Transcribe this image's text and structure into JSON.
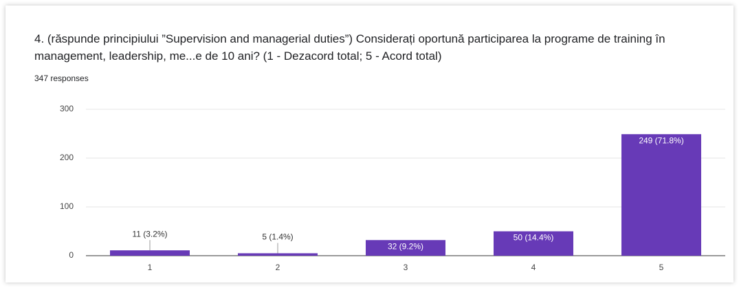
{
  "chart_data": {
    "type": "bar",
    "title": "4. (răspunde principiului ”Supervision and managerial duties”)  Considerați oportună participarea la programe de training în management, leadership,  me...e de 10 ani? (1 - Dezacord total; 5  - Acord total)",
    "subtitle": "347 responses",
    "categories": [
      "1",
      "2",
      "3",
      "4",
      "5"
    ],
    "values": [
      11,
      5,
      32,
      50,
      249
    ],
    "value_labels": [
      "11 (3.2%)",
      "5 (1.4%)",
      "32 (9.2%)",
      "50 (14.4%)",
      "249 (71.8%)"
    ],
    "color": "#673ab7",
    "ylim": [
      0,
      300
    ],
    "yticks": [
      0,
      100,
      200,
      300
    ],
    "grid": true
  }
}
